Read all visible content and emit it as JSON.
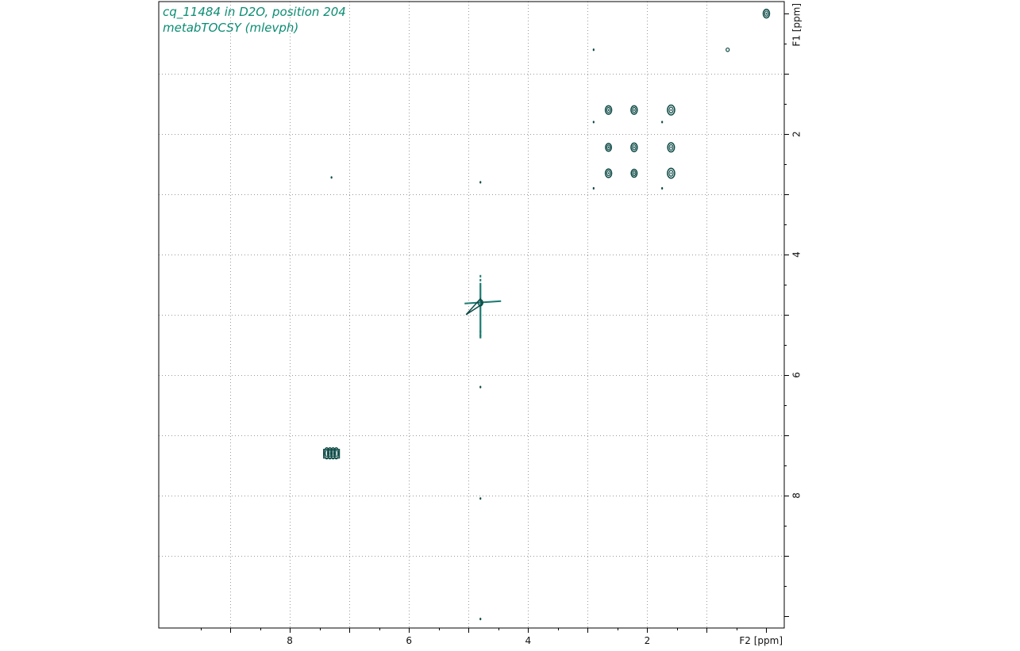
{
  "header": {
    "title_line1": "cq_11484 in D2O, position 204",
    "title_line2": "metabTOCSY (mlevph)"
  },
  "colors": {
    "contour": "#0d4a46",
    "contour_light": "#1a7a70",
    "title": "#0a8c72",
    "grid": "#9a9a9a",
    "frame": "#000000"
  },
  "chart_data": {
    "type": "contour",
    "x_axis": {
      "label": "F2 [ppm]",
      "range": [
        10.2,
        -0.3
      ],
      "reversed": true,
      "major_ticks": [
        8,
        6,
        4,
        2
      ],
      "minor_step": 0.5,
      "grid_lines": [
        9,
        8,
        7,
        6,
        5,
        4,
        3,
        2,
        1
      ]
    },
    "y_axis": {
      "label": "F1 [ppm]",
      "range": [
        -0.2,
        10.2
      ],
      "reversed": true,
      "major_ticks": [
        2,
        4,
        6,
        8
      ],
      "minor_step": 0.5,
      "grid_lines": [
        1,
        2,
        3,
        4,
        5,
        6,
        7,
        8,
        9
      ]
    },
    "grid": true,
    "peaks": [
      {
        "f2": 0.0,
        "f1": 0.0,
        "size": 1.0
      },
      {
        "f2": 0.65,
        "f1": 0.6,
        "size": 0.5
      },
      {
        "f2": 2.9,
        "f1": 0.6,
        "size": 0.3
      },
      {
        "f2": 2.65,
        "f1": 1.6,
        "size": 1.0
      },
      {
        "f2": 2.22,
        "f1": 1.6,
        "size": 1.0
      },
      {
        "f2": 1.6,
        "f1": 1.6,
        "size": 1.2
      },
      {
        "f2": 2.9,
        "f1": 1.8,
        "size": 0.3
      },
      {
        "f2": 1.75,
        "f1": 1.8,
        "size": 0.3
      },
      {
        "f2": 2.65,
        "f1": 2.22,
        "size": 0.9
      },
      {
        "f2": 2.22,
        "f1": 2.22,
        "size": 1.0
      },
      {
        "f2": 1.6,
        "f1": 2.22,
        "size": 1.1
      },
      {
        "f2": 2.65,
        "f1": 2.65,
        "size": 1.0
      },
      {
        "f2": 2.22,
        "f1": 2.65,
        "size": 0.9
      },
      {
        "f2": 1.6,
        "f1": 2.65,
        "size": 1.2
      },
      {
        "f2": 2.9,
        "f1": 2.9,
        "size": 0.3
      },
      {
        "f2": 1.75,
        "f1": 2.9,
        "size": 0.3
      },
      {
        "f2": 7.3,
        "f1": 2.72,
        "size": 0.3
      },
      {
        "f2": 4.8,
        "f1": 2.8,
        "size": 0.3
      },
      {
        "f2": 7.3,
        "f1": 7.3,
        "size": 2.0
      },
      {
        "f2": 4.8,
        "f1": 6.2,
        "size": 0.3
      },
      {
        "f2": 4.8,
        "f1": 8.05,
        "size": 0.3
      },
      {
        "f2": 4.8,
        "f1": 10.05,
        "size": 0.3
      }
    ],
    "water_signal": {
      "f2": 4.8,
      "f1": 4.8
    }
  }
}
